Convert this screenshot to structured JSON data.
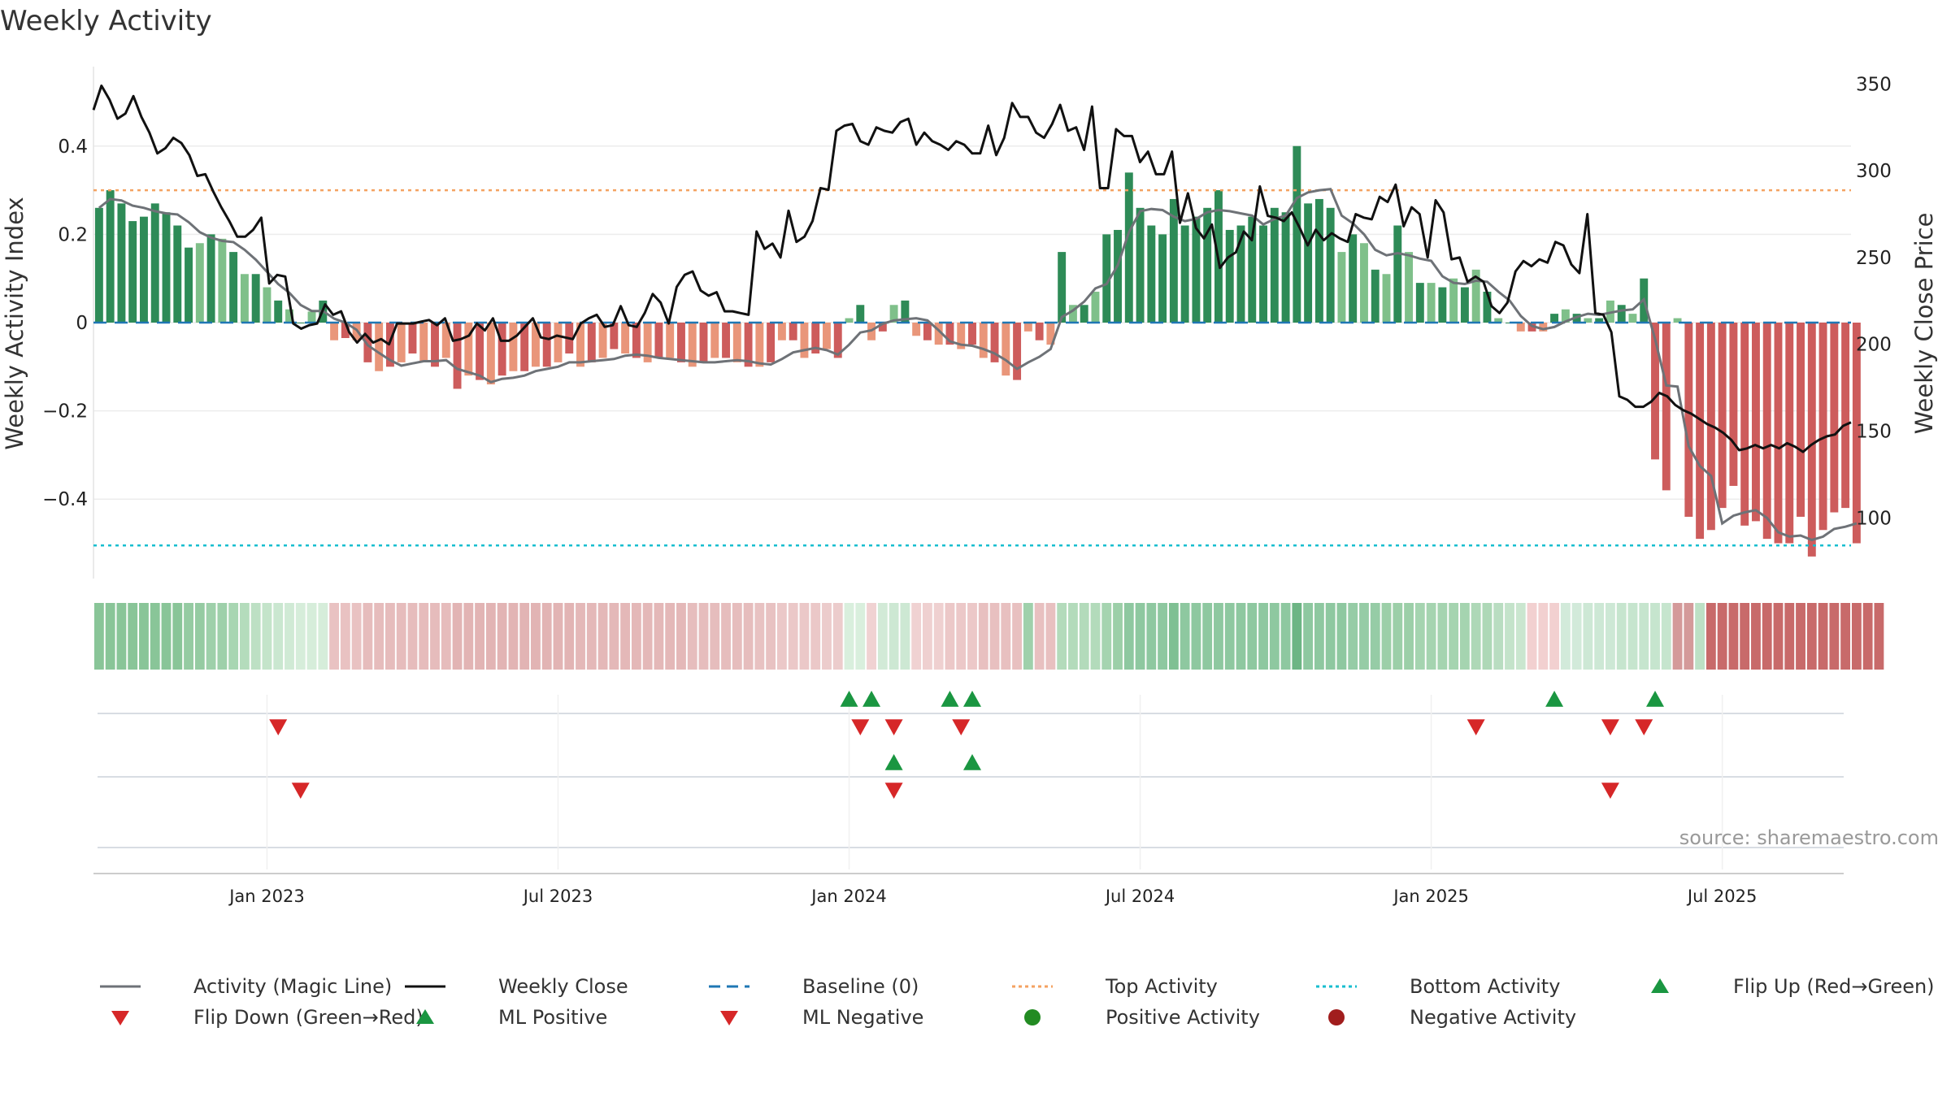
{
  "chart_data": {
    "type": "bar",
    "title": "Weekly Activity",
    "ylabel_left": "Weekly Activity Index",
    "ylabel_right": "Weekly Close Price",
    "left_ylim": [
      -0.58,
      0.58
    ],
    "right_ylim": [
      65,
      360
    ],
    "left_ticks": [
      {
        "v": 0.4,
        "label": "0.4"
      },
      {
        "v": 0.2,
        "label": "0.2"
      },
      {
        "v": 0,
        "label": "0"
      },
      {
        "v": -0.2,
        "label": "−0.2"
      },
      {
        "v": -0.4,
        "label": "−0.4"
      }
    ],
    "right_ticks": [
      {
        "v": 350,
        "label": "350"
      },
      {
        "v": 300,
        "label": "300"
      },
      {
        "v": 250,
        "label": "250"
      },
      {
        "v": 200,
        "label": "200"
      },
      {
        "v": 150,
        "label": "150"
      },
      {
        "v": 100,
        "label": "100"
      }
    ],
    "x_start": "2022-09-18",
    "weeks": 157,
    "x_ticks": [
      {
        "week": 15,
        "label": "Jan 2023"
      },
      {
        "week": 41,
        "label": "Jul 2023"
      },
      {
        "week": 67,
        "label": "Jan 2024"
      },
      {
        "week": 93,
        "label": "Jul 2024"
      },
      {
        "week": 119,
        "label": "Jan 2025"
      },
      {
        "week": 145,
        "label": "Jul 2025"
      }
    ],
    "top_activity": 0.3,
    "bottom_activity": -0.505,
    "baseline": 0,
    "activity": [
      0.26,
      0.3,
      0.27,
      0.23,
      0.24,
      0.27,
      0.25,
      0.22,
      0.17,
      0.18,
      0.2,
      0.19,
      0.16,
      0.11,
      0.11,
      0.08,
      0.05,
      0.03,
      0,
      0.025,
      0.05,
      -0.04,
      -0.035,
      -0.04,
      -0.09,
      -0.11,
      -0.1,
      -0.09,
      -0.07,
      -0.09,
      -0.1,
      -0.08,
      -0.15,
      -0.12,
      -0.13,
      -0.14,
      -0.12,
      -0.11,
      -0.11,
      -0.1,
      -0.1,
      -0.09,
      -0.07,
      -0.1,
      -0.09,
      -0.08,
      -0.06,
      -0.07,
      -0.08,
      -0.09,
      -0.08,
      -0.08,
      -0.09,
      -0.1,
      -0.09,
      -0.08,
      -0.08,
      -0.09,
      -0.1,
      -0.1,
      -0.09,
      -0.04,
      -0.04,
      -0.08,
      -0.07,
      -0.06,
      -0.08,
      0.01,
      0.04,
      -0.04,
      -0.02,
      0.04,
      0.05,
      -0.03,
      -0.04,
      -0.05,
      -0.05,
      -0.06,
      -0.05,
      -0.08,
      -0.09,
      -0.12,
      -0.13,
      -0.02,
      -0.04,
      -0.05,
      0.16,
      0.04,
      0.04,
      0.07,
      0.2,
      0.21,
      0.34,
      0.26,
      0.22,
      0.2,
      0.28,
      0.22,
      0.24,
      0.26,
      0.3,
      0.21,
      0.22,
      0.24,
      0.22,
      0.26,
      0.25,
      0.4,
      0.27,
      0.28,
      0.26,
      0.16,
      0.2,
      0.18,
      0.12,
      0.11,
      0.22,
      0.16,
      0.09,
      0.09,
      0.08,
      0.1,
      0.08,
      0.12,
      0.07,
      0.01,
      0,
      -0.02,
      -0.02,
      -0.02,
      0.02,
      0.03,
      0.02,
      0.01,
      0.01,
      0.05,
      0.04,
      0.02,
      0.1,
      -0.31,
      -0.38,
      0.01,
      -0.44,
      -0.49,
      -0.47,
      -0.42,
      -0.37,
      -0.46,
      -0.45,
      -0.49,
      -0.5,
      -0.5,
      -0.44,
      -0.53,
      -0.47,
      -0.43,
      -0.42,
      -0.5
    ],
    "close": [
      335,
      349,
      341,
      330,
      333,
      343,
      331,
      322,
      310,
      313,
      319,
      316,
      309,
      297,
      298,
      288,
      279,
      271,
      262,
      262,
      266,
      273,
      235,
      240,
      239,
      212,
      209,
      211,
      212,
      223,
      217,
      219,
      207,
      201,
      206,
      201,
      203,
      200,
      212,
      212,
      212,
      213,
      214,
      211,
      215,
      202,
      203,
      205,
      212,
      208,
      215,
      202,
      202,
      205,
      210,
      215,
      204,
      203,
      205,
      204,
      203,
      212,
      215,
      217,
      210,
      211,
      222,
      211,
      210,
      218,
      229,
      224,
      212,
      233,
      240,
      242,
      231,
      228,
      230,
      219,
      219,
      218,
      217,
      265,
      255,
      258,
      250,
      277,
      259,
      262,
      271,
      290,
      289,
      323,
      326,
      327,
      317,
      315,
      325,
      323,
      322,
      328,
      330,
      315,
      322,
      317,
      315,
      312,
      317,
      315,
      310,
      310,
      326,
      309,
      319,
      339,
      331,
      331,
      322,
      319,
      327,
      338,
      323,
      325,
      312,
      337,
      290,
      290,
      324,
      320,
      320,
      305,
      311,
      298,
      298,
      311,
      270,
      287,
      267,
      261,
      269,
      244,
      250,
      253,
      265,
      260,
      291,
      274,
      273,
      271,
      276,
      267,
      257,
      266,
      260,
      264,
      261,
      259,
      275,
      273,
      272,
      285,
      282,
      292,
      268,
      279,
      275,
      250,
      283,
      276,
      249,
      250,
      236,
      239,
      236,
      222,
      218,
      224,
      242,
      248,
      245,
      249,
      247,
      259,
      257,
      246,
      241,
      275,
      218,
      217,
      207,
      170,
      168,
      164,
      164,
      167,
      172,
      170,
      165,
      162,
      160,
      157,
      154,
      152,
      149,
      145,
      139,
      140,
      142,
      140,
      142,
      140,
      143,
      141,
      138,
      142,
      145,
      147,
      148,
      153,
      155
    ],
    "strip_colors": [
      "#89c598",
      "#89c598",
      "#89c598",
      "#89c598",
      "#89c598",
      "#89c598",
      "#89c598",
      "#89c598",
      "#95cba2",
      "#95cba2",
      "#9ed0aa",
      "#9ed0aa",
      "#a8d6b2",
      "#b4dcbc",
      "#bde0c4",
      "#c4e4ca",
      "#cae7d0",
      "#d0eaD5",
      "#d6edda",
      "#d6edda",
      "#d6edda",
      "#e9c2c2",
      "#e9c2c2",
      "#e9c2c2",
      "#e6bcbc",
      "#e6bcbc",
      "#e6bcbc",
      "#e6bcbc",
      "#e6bcbc",
      "#e6bcbc",
      "#e6bcbc",
      "#e6bcbc",
      "#e2b4b4",
      "#e2b4b4",
      "#e2b4b4",
      "#e2b4b4",
      "#e2b4b4",
      "#e2b4b4",
      "#e2b4b4",
      "#e2b4b4",
      "#e2b4b4",
      "#e2b4b4",
      "#e2b4b4",
      "#e4b8b8",
      "#e4b8b8",
      "#e4b8b8",
      "#e4b8b8",
      "#e4b8b8",
      "#e4b8b8",
      "#e4b8b8",
      "#e4b8b8",
      "#e4b8b8",
      "#e4b8b8",
      "#e6bdbd",
      "#e6bdbd",
      "#e6bdbd",
      "#e6bdbd",
      "#e6bdbd",
      "#e6bdbd",
      "#e8c2c2",
      "#e8c2c2",
      "#ebc8c8",
      "#ebc8c8",
      "#ebc8c8",
      "#ebc8c8",
      "#eccccc",
      "#eccccc",
      "#d9efdd",
      "#d9efdd",
      "#f0d2d2",
      "#d2ead7",
      "#cde8d3",
      "#cde8d3",
      "#f0d2d2",
      "#efd0d0",
      "#efd0d0",
      "#ecc8c8",
      "#ecc8c8",
      "#ecc8c8",
      "#e8c0c0",
      "#e8c0c0",
      "#e8c0c0",
      "#e8c0c0",
      "#9fd0ab",
      "#e8c0c0",
      "#e8c0c0",
      "#b3dbbb",
      "#b3dbbb",
      "#b3dbbb",
      "#b3dbbb",
      "#a5d4b0",
      "#9ccfa8",
      "#8ec8a0",
      "#8ec8a0",
      "#8ec8a0",
      "#8ec8a0",
      "#7fc093",
      "#8ec8a0",
      "#8ec8a0",
      "#8ec8a0",
      "#8ec8a0",
      "#8ec8a0",
      "#8ec8a0",
      "#8ec8a0",
      "#8ec8a0",
      "#8ec8a0",
      "#8ec8a0",
      "#6db584",
      "#8ec8a0",
      "#8ec8a0",
      "#8ec8a0",
      "#8ec8a0",
      "#96cca6",
      "#96cca6",
      "#96cca6",
      "#9ccfa8",
      "#9ccfa8",
      "#9ccfa8",
      "#a5d4b0",
      "#a5d4b0",
      "#a5d4b0",
      "#a5d4b0",
      "#a5d4b0",
      "#aed8b7",
      "#aed8b7",
      "#b9ddc1",
      "#c4e3ca",
      "#cae6cf",
      "#f2d0d0",
      "#f2d0d0",
      "#f2d0d0",
      "#d2eada",
      "#d2eada",
      "#cde8d5",
      "#cde8d5",
      "#cde8d5",
      "#c6e5ce",
      "#c6e5ce",
      "#c6e5ce",
      "#c6e5ce",
      "#c6e5ce",
      "#d49a9a",
      "#d49a9a",
      "#bde0c5",
      "#c86a6a",
      "#c86a6a",
      "#c86a6a",
      "#c86a6a",
      "#c86a6a",
      "#c86a6a",
      "#c86a6a",
      "#c86a6a",
      "#c86a6a",
      "#c86a6a",
      "#c86a6a",
      "#c86a6a",
      "#c86a6a",
      "#c86a6a",
      "#c86a6a",
      "#c86a6a"
    ],
    "flip_up": [
      67,
      69,
      76,
      78,
      130,
      139
    ],
    "flip_down": [
      16,
      68,
      71,
      77,
      123,
      135,
      138
    ],
    "ml_positive": [
      71,
      78
    ],
    "ml_negative": [
      18,
      71,
      135
    ],
    "legend": [
      {
        "key": "magic",
        "label": "Activity (Magic Line)"
      },
      {
        "key": "close",
        "label": "Weekly Close"
      },
      {
        "key": "baseline",
        "label": "Baseline (0)"
      },
      {
        "key": "top",
        "label": "Top Activity"
      },
      {
        "key": "bottom",
        "label": "Bottom Activity"
      },
      {
        "key": "flipup",
        "label": "Flip Up (Red→Green)"
      },
      {
        "key": "flipdown",
        "label": "Flip Down (Green→Red)"
      },
      {
        "key": "mlpos",
        "label": "ML Positive"
      },
      {
        "key": "mlneg",
        "label": "ML Negative"
      },
      {
        "key": "posact",
        "label": "Positive Activity"
      },
      {
        "key": "negact",
        "label": "Negative Activity"
      }
    ],
    "source": "source: sharemaestro.com",
    "colors": {
      "pos_dark": "#2e8b57",
      "pos_light": "#7fc08a",
      "neg_dark": "#cd5c5c",
      "neg_light": "#e9967a",
      "magic": "#6e7277",
      "close": "#111111",
      "baseline": "#1f77b4",
      "top": "#f4a261",
      "bottom": "#17becf",
      "marker_up": "#1a9641",
      "marker_down": "#d62728",
      "dot_pos": "#228b22",
      "dot_neg": "#a11d1d"
    }
  }
}
